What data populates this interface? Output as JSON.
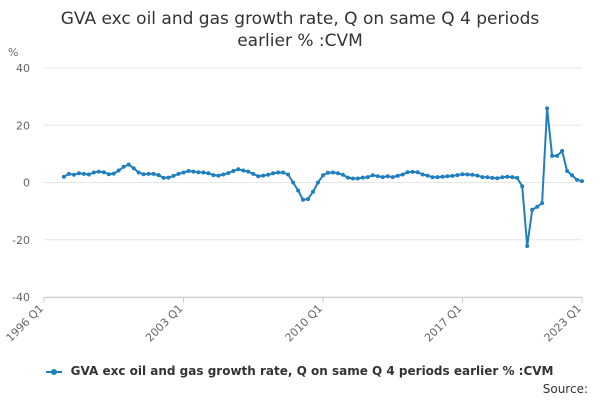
{
  "chart_data": {
    "type": "line",
    "title": "GVA exc oil and gas growth rate, Q on same Q 4 periods earlier % :CVM",
    "ylabel": "%",
    "xlabel": "",
    "ylim": [
      -40,
      40
    ],
    "yticks": [
      "40",
      "20",
      "0",
      "-20",
      "-40"
    ],
    "ytick_values": [
      40,
      20,
      0,
      -20,
      -40
    ],
    "xticks": [
      "1996 Q1",
      "2003 Q1",
      "2010 Q1",
      "2017 Q1",
      "2023 Q1"
    ],
    "xtick_index": [
      0,
      28,
      56,
      84,
      108
    ],
    "grid": true,
    "legend_position": "bottom",
    "color": "#1f7fbf",
    "series": [
      {
        "name": "GVA exc oil and gas growth rate, Q on same Q 4 periods earlier % :CVM",
        "start_index": 4,
        "values": [
          2.0,
          3.0,
          2.7,
          3.2,
          3.0,
          2.8,
          3.5,
          3.8,
          3.6,
          2.9,
          3.1,
          4.2,
          5.5,
          6.3,
          5.0,
          3.5,
          2.9,
          3.0,
          3.0,
          2.6,
          1.6,
          1.7,
          2.3,
          3.0,
          3.5,
          4.0,
          3.8,
          3.6,
          3.5,
          3.2,
          2.6,
          2.4,
          2.8,
          3.3,
          4.0,
          4.6,
          4.2,
          3.8,
          3.0,
          2.2,
          2.4,
          2.7,
          3.2,
          3.5,
          3.5,
          2.8,
          0.0,
          -2.8,
          -6.0,
          -5.8,
          -3.2,
          0.0,
          2.5,
          3.4,
          3.5,
          3.2,
          2.7,
          1.7,
          1.4,
          1.4,
          1.7,
          1.9,
          2.5,
          2.2,
          1.9,
          2.2,
          1.9,
          2.3,
          2.8,
          3.6,
          3.7,
          3.6,
          2.8,
          2.4,
          1.8,
          1.9,
          2.0,
          2.2,
          2.3,
          2.6,
          2.9,
          2.8,
          2.7,
          2.4,
          1.9,
          1.8,
          1.6,
          1.5,
          1.8,
          2.0,
          1.9,
          1.6,
          -1.3,
          -22.2,
          -9.5,
          -8.5,
          -7.2,
          25.9,
          9.3,
          9.3,
          11.0,
          4.0,
          2.5,
          0.9,
          0.5
        ]
      }
    ]
  },
  "legend": {
    "label": "GVA exc oil and gas growth rate, Q on same Q 4 periods earlier % :CVM"
  },
  "source": {
    "label": "Source:"
  }
}
